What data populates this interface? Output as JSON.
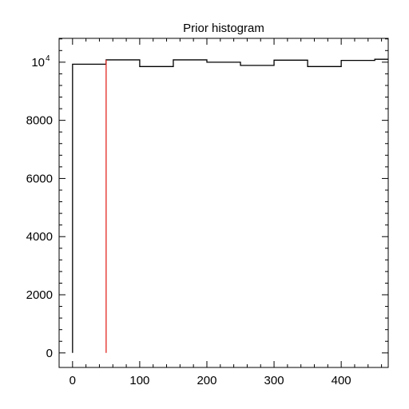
{
  "chart_data": {
    "type": "bar",
    "title": "Prior histogram",
    "xlabel": "",
    "ylabel": "",
    "xlim": [
      -20,
      470
    ],
    "ylim": [
      -500,
      10820
    ],
    "x_ticks": [
      0,
      100,
      200,
      300,
      400
    ],
    "y_ticks": [
      0,
      2000,
      4000,
      6000,
      8000,
      10000
    ],
    "x_tick_labels": [
      "0",
      "100",
      "200",
      "300",
      "400"
    ],
    "y_tick_labels": [
      "0",
      "2000",
      "4000",
      "6000",
      "8000"
    ],
    "y_top_label": {
      "value": 10000,
      "base": "10",
      "exponent": "4"
    },
    "bin_edges": [
      0,
      50,
      100,
      150,
      200,
      250,
      300,
      350,
      400,
      450,
      500
    ],
    "values": [
      9930,
      10080,
      9850,
      10080,
      10000,
      9890,
      10070,
      9850,
      10060,
      10100
    ],
    "series": [
      {
        "name": "",
        "style": "step",
        "color": "#000000"
      }
    ],
    "reference_line": {
      "x": 50,
      "color": "#e0261f"
    },
    "grid": false
  }
}
